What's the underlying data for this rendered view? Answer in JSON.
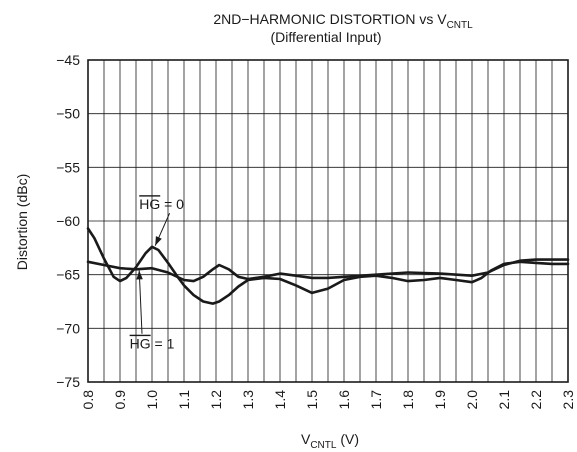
{
  "chart_data": {
    "type": "line",
    "title": "2ND−HARMONIC DISTORTION vs V",
    "title_subscript": "CNTL",
    "subtitle": "(Differential Input)",
    "xlabel": "V",
    "xlabel_subscript": "CNTL",
    "xlabel_unit": " (V)",
    "ylabel": "Distortion (dBc)",
    "xlim": [
      0.8,
      2.3
    ],
    "ylim": [
      -75,
      -45
    ],
    "x_ticks": [
      0.8,
      0.9,
      1.0,
      1.1,
      1.2,
      1.3,
      1.4,
      1.5,
      1.6,
      1.7,
      1.8,
      1.9,
      2.0,
      2.1,
      2.2,
      2.3
    ],
    "x_tick_labels": [
      "0.8",
      "0.9",
      "1.0",
      "1.1",
      "1.2",
      "1.3",
      "1.4",
      "1.5",
      "1.6",
      "1.7",
      "1.8",
      "1.9",
      "2.0",
      "2.1",
      "2.2",
      "2.3"
    ],
    "y_ticks": [
      -45,
      -50,
      -55,
      -60,
      -65,
      -70,
      -75
    ],
    "y_tick_labels": [
      "−45",
      "−50",
      "−55",
      "−60",
      "−65",
      "−70",
      "−75"
    ],
    "x_grid_step": 0.05,
    "y_grid_step": 5,
    "grid": true,
    "series": [
      {
        "name": "HG = 0",
        "label_prefix": "HG",
        "label_suffix": " = 0",
        "x": [
          0.8,
          0.82,
          0.85,
          0.88,
          0.9,
          0.92,
          0.95,
          0.98,
          1.0,
          1.02,
          1.05,
          1.08,
          1.1,
          1.13,
          1.16,
          1.19,
          1.21,
          1.24,
          1.27,
          1.3,
          1.35,
          1.4,
          1.45,
          1.5,
          1.55,
          1.6,
          1.65,
          1.7,
          1.75,
          1.8,
          1.85,
          1.9,
          1.95,
          2.0,
          2.03,
          2.06,
          2.1,
          2.15,
          2.2,
          2.25,
          2.3
        ],
        "values": [
          -60.7,
          -61.6,
          -63.5,
          -65.2,
          -65.6,
          -65.3,
          -64.3,
          -63.0,
          -62.4,
          -62.7,
          -63.9,
          -65.2,
          -66.0,
          -66.9,
          -67.5,
          -67.7,
          -67.5,
          -66.9,
          -66.1,
          -65.5,
          -65.3,
          -65.4,
          -66.0,
          -66.7,
          -66.3,
          -65.5,
          -65.2,
          -65.1,
          -65.3,
          -65.6,
          -65.5,
          -65.3,
          -65.5,
          -65.7,
          -65.3,
          -64.6,
          -64.0,
          -63.8,
          -63.9,
          -64.0,
          -64.0
        ]
      },
      {
        "name": "HG = 1",
        "label_prefix": "HG",
        "label_suffix": " = 1",
        "x": [
          0.8,
          0.85,
          0.9,
          0.95,
          1.0,
          1.05,
          1.1,
          1.13,
          1.16,
          1.19,
          1.21,
          1.24,
          1.27,
          1.3,
          1.35,
          1.4,
          1.45,
          1.5,
          1.55,
          1.6,
          1.7,
          1.8,
          1.9,
          2.0,
          2.05,
          2.1,
          2.15,
          2.2,
          2.25,
          2.3
        ],
        "values": [
          -63.8,
          -64.1,
          -64.4,
          -64.5,
          -64.4,
          -64.8,
          -65.5,
          -65.6,
          -65.2,
          -64.5,
          -64.1,
          -64.5,
          -65.2,
          -65.4,
          -65.2,
          -64.9,
          -65.1,
          -65.3,
          -65.3,
          -65.2,
          -65.0,
          -64.8,
          -64.9,
          -65.1,
          -64.8,
          -64.1,
          -63.7,
          -63.6,
          -63.6,
          -63.6
        ]
      }
    ],
    "annotations": [
      {
        "series": "HG = 0",
        "text_x": 1.03,
        "text_y": -58.9,
        "arrow_to": [
          1.01,
          -62.3
        ]
      },
      {
        "series": "HG = 1",
        "text_x": 1.0,
        "text_y": -71.9,
        "arrow_to": [
          0.96,
          -64.6
        ]
      }
    ]
  }
}
